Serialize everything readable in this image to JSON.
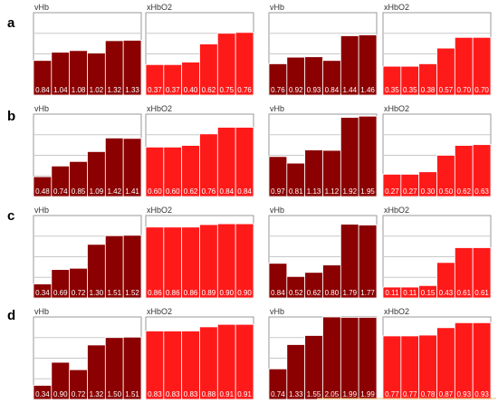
{
  "rows": [
    {
      "label": "a"
    },
    {
      "label": "b"
    },
    {
      "label": "c"
    },
    {
      "label": "d"
    }
  ],
  "colors": {
    "vHb": "#8b0000",
    "xHbO2": "#ff1a1a",
    "panel_border": "#9a9a9a",
    "grid": "#c8c8c8",
    "label_text": "#ffffff",
    "bottom_rule": "#e8c070"
  },
  "chart_data": [
    {
      "type": "bar",
      "row": "a",
      "column": 1,
      "title": "vHb",
      "ylim": [
        0,
        2
      ],
      "grid": true,
      "values": [
        0.84,
        1.04,
        1.08,
        1.02,
        1.32,
        1.33
      ],
      "labels": [
        "0.84",
        "1.04",
        "1.08",
        "1.02",
        "1.32",
        "1.33"
      ]
    },
    {
      "type": "bar",
      "row": "a",
      "column": 2,
      "title": "xHbO2",
      "ylim": [
        0,
        1
      ],
      "grid": true,
      "values": [
        0.37,
        0.37,
        0.4,
        0.62,
        0.75,
        0.76
      ],
      "labels": [
        "0.37",
        "0.37",
        "0.40",
        "0.62",
        "0.75",
        "0.76"
      ]
    },
    {
      "type": "bar",
      "row": "a",
      "column": 3,
      "title": "vHb",
      "ylim": [
        0,
        2
      ],
      "grid": true,
      "values": [
        0.76,
        0.92,
        0.93,
        0.84,
        1.44,
        1.46
      ],
      "labels": [
        "0.76",
        "0.92",
        "0.93",
        "0.84",
        "1.44",
        "1.46"
      ]
    },
    {
      "type": "bar",
      "row": "a",
      "column": 4,
      "title": "xHbO2",
      "ylim": [
        0,
        1
      ],
      "grid": true,
      "values": [
        0.35,
        0.35,
        0.38,
        0.57,
        0.7,
        0.7
      ],
      "labels": [
        "0.35",
        "0.35",
        "0.38",
        "0.57",
        "0.70",
        "0.70"
      ]
    },
    {
      "type": "bar",
      "row": "b",
      "column": 1,
      "title": "vHb",
      "ylim": [
        0,
        2
      ],
      "grid": true,
      "values": [
        0.48,
        0.74,
        0.85,
        1.09,
        1.42,
        1.41
      ],
      "labels": [
        "0.48",
        "0.74",
        "0.85",
        "1.09",
        "1.42",
        "1.41"
      ]
    },
    {
      "type": "bar",
      "row": "b",
      "column": 2,
      "title": "xHbO2",
      "ylim": [
        0,
        1
      ],
      "grid": true,
      "values": [
        0.6,
        0.6,
        0.62,
        0.76,
        0.84,
        0.84
      ],
      "labels": [
        "0.60",
        "0.60",
        "0.62",
        "0.76",
        "0.84",
        "0.84"
      ]
    },
    {
      "type": "bar",
      "row": "b",
      "column": 3,
      "title": "vHb",
      "ylim": [
        0,
        2
      ],
      "grid": true,
      "values": [
        0.97,
        0.81,
        1.13,
        1.12,
        1.92,
        1.95
      ],
      "labels": [
        "0.97",
        "0.81",
        "1.13",
        "1.12",
        "1.92",
        "1.95"
      ]
    },
    {
      "type": "bar",
      "row": "b",
      "column": 4,
      "title": "xHbO2",
      "ylim": [
        0,
        1
      ],
      "grid": true,
      "values": [
        0.27,
        0.27,
        0.3,
        0.5,
        0.62,
        0.63
      ],
      "labels": [
        "0.27",
        "0.27",
        "0.30",
        "0.50",
        "0.62",
        "0.63"
      ]
    },
    {
      "type": "bar",
      "row": "c",
      "column": 1,
      "title": "vHb",
      "ylim": [
        0,
        2
      ],
      "grid": true,
      "values": [
        0.34,
        0.69,
        0.72,
        1.3,
        1.51,
        1.52
      ],
      "labels": [
        "0.34",
        "0.69",
        "0.72",
        "1.30",
        "1.51",
        "1.52"
      ]
    },
    {
      "type": "bar",
      "row": "c",
      "column": 2,
      "title": "xHbO2",
      "ylim": [
        0,
        1
      ],
      "grid": true,
      "values": [
        0.86,
        0.86,
        0.86,
        0.89,
        0.9,
        0.9
      ],
      "labels": [
        "0.86",
        "0.86",
        "0.86",
        "0.89",
        "0.90",
        "0.90"
      ]
    },
    {
      "type": "bar",
      "row": "c",
      "column": 3,
      "title": "vHb",
      "ylim": [
        0,
        2
      ],
      "grid": true,
      "values": [
        0.84,
        0.52,
        0.62,
        0.8,
        1.79,
        1.77
      ],
      "labels": [
        "0.84",
        "0.52",
        "0.62",
        "0.80",
        "1.79",
        "1.77"
      ]
    },
    {
      "type": "bar",
      "row": "c",
      "column": 4,
      "title": "xHbO2",
      "ylim": [
        0,
        1
      ],
      "grid": true,
      "values": [
        0.11,
        0.11,
        0.15,
        0.43,
        0.61,
        0.61
      ],
      "labels": [
        "0.11",
        "0.11",
        "0.15",
        "0.43",
        "0.61",
        "0.61"
      ]
    },
    {
      "type": "bar",
      "row": "d",
      "column": 1,
      "title": "vHb",
      "ylim": [
        0,
        2
      ],
      "grid": true,
      "values": [
        0.34,
        0.9,
        0.72,
        1.32,
        1.5,
        1.51
      ],
      "labels": [
        "0.34",
        "0.90",
        "0.72",
        "1.32",
        "1.50",
        "1.51"
      ]
    },
    {
      "type": "bar",
      "row": "d",
      "column": 2,
      "title": "xHbO2",
      "ylim": [
        0,
        1
      ],
      "grid": true,
      "values": [
        0.83,
        0.83,
        0.83,
        0.88,
        0.91,
        0.91
      ],
      "labels": [
        "0.83",
        "0.83",
        "0.83",
        "0.88",
        "0.91",
        "0.91"
      ]
    },
    {
      "type": "bar",
      "row": "d",
      "column": 3,
      "title": "vHb",
      "ylim": [
        0,
        2
      ],
      "grid": true,
      "values": [
        0.74,
        1.33,
        1.55,
        2.05,
        1.99,
        1.99
      ],
      "labels": [
        "0.74",
        "1.33",
        "1.55",
        "2.05",
        "1.99",
        "1.99"
      ]
    },
    {
      "type": "bar",
      "row": "d",
      "column": 4,
      "title": "xHbO2",
      "ylim": [
        0,
        1
      ],
      "grid": true,
      "values": [
        0.77,
        0.77,
        0.78,
        0.87,
        0.93,
        0.93
      ],
      "labels": [
        "0.77",
        "0.77",
        "0.78",
        "0.87",
        "0.93",
        "0.93"
      ]
    }
  ]
}
